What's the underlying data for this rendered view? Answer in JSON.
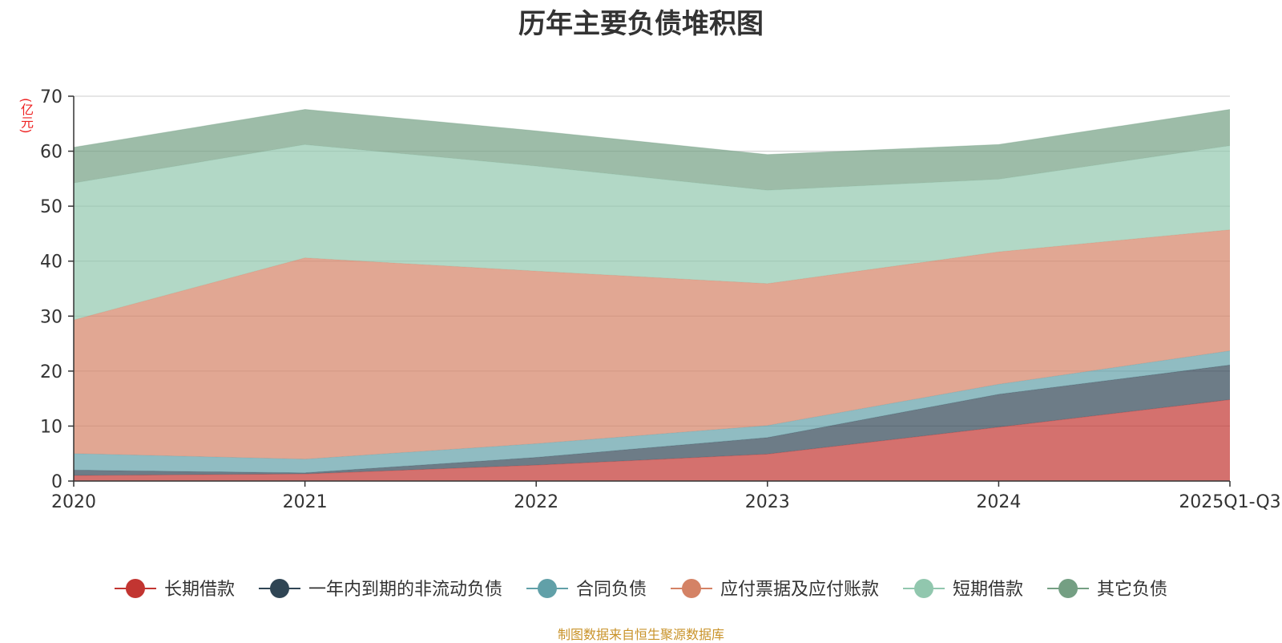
{
  "chart_data": {
    "type": "area",
    "stacked": true,
    "title": "历年主要负债堆积图",
    "unit_label": "(亿元)",
    "source_note": "制图数据来自恒生聚源数据库",
    "categories": [
      "2020",
      "2021",
      "2022",
      "2023",
      "2024",
      "2025Q1-Q3"
    ],
    "ylim": [
      0,
      70
    ],
    "yticks": [
      0,
      10,
      20,
      30,
      40,
      50,
      60,
      70
    ],
    "legend_position": "bottom-center",
    "grid": true,
    "series": [
      {
        "name": "长期借款",
        "color": "#c23531",
        "values": [
          1.0,
          1.3,
          2.9,
          4.9,
          9.8,
          14.8
        ]
      },
      {
        "name": "一年内到期的非流动负债",
        "color": "#2f4554",
        "values": [
          1.0,
          0.2,
          1.4,
          3.0,
          6.0,
          6.3
        ]
      },
      {
        "name": "合同负债",
        "color": "#61a0a8",
        "values": [
          3.0,
          2.5,
          2.5,
          2.2,
          1.8,
          2.6
        ]
      },
      {
        "name": "应付票据及应付账款",
        "color": "#d48265",
        "values": [
          24.3,
          36.6,
          31.4,
          25.8,
          24.1,
          22.0
        ]
      },
      {
        "name": "短期借款",
        "color": "#91c7ae",
        "values": [
          24.9,
          20.6,
          19.1,
          17.0,
          13.2,
          15.3
        ]
      },
      {
        "name": "其它负债",
        "color": "#749f83",
        "values": [
          6.5,
          6.4,
          6.4,
          6.5,
          6.3,
          6.6
        ]
      }
    ]
  }
}
